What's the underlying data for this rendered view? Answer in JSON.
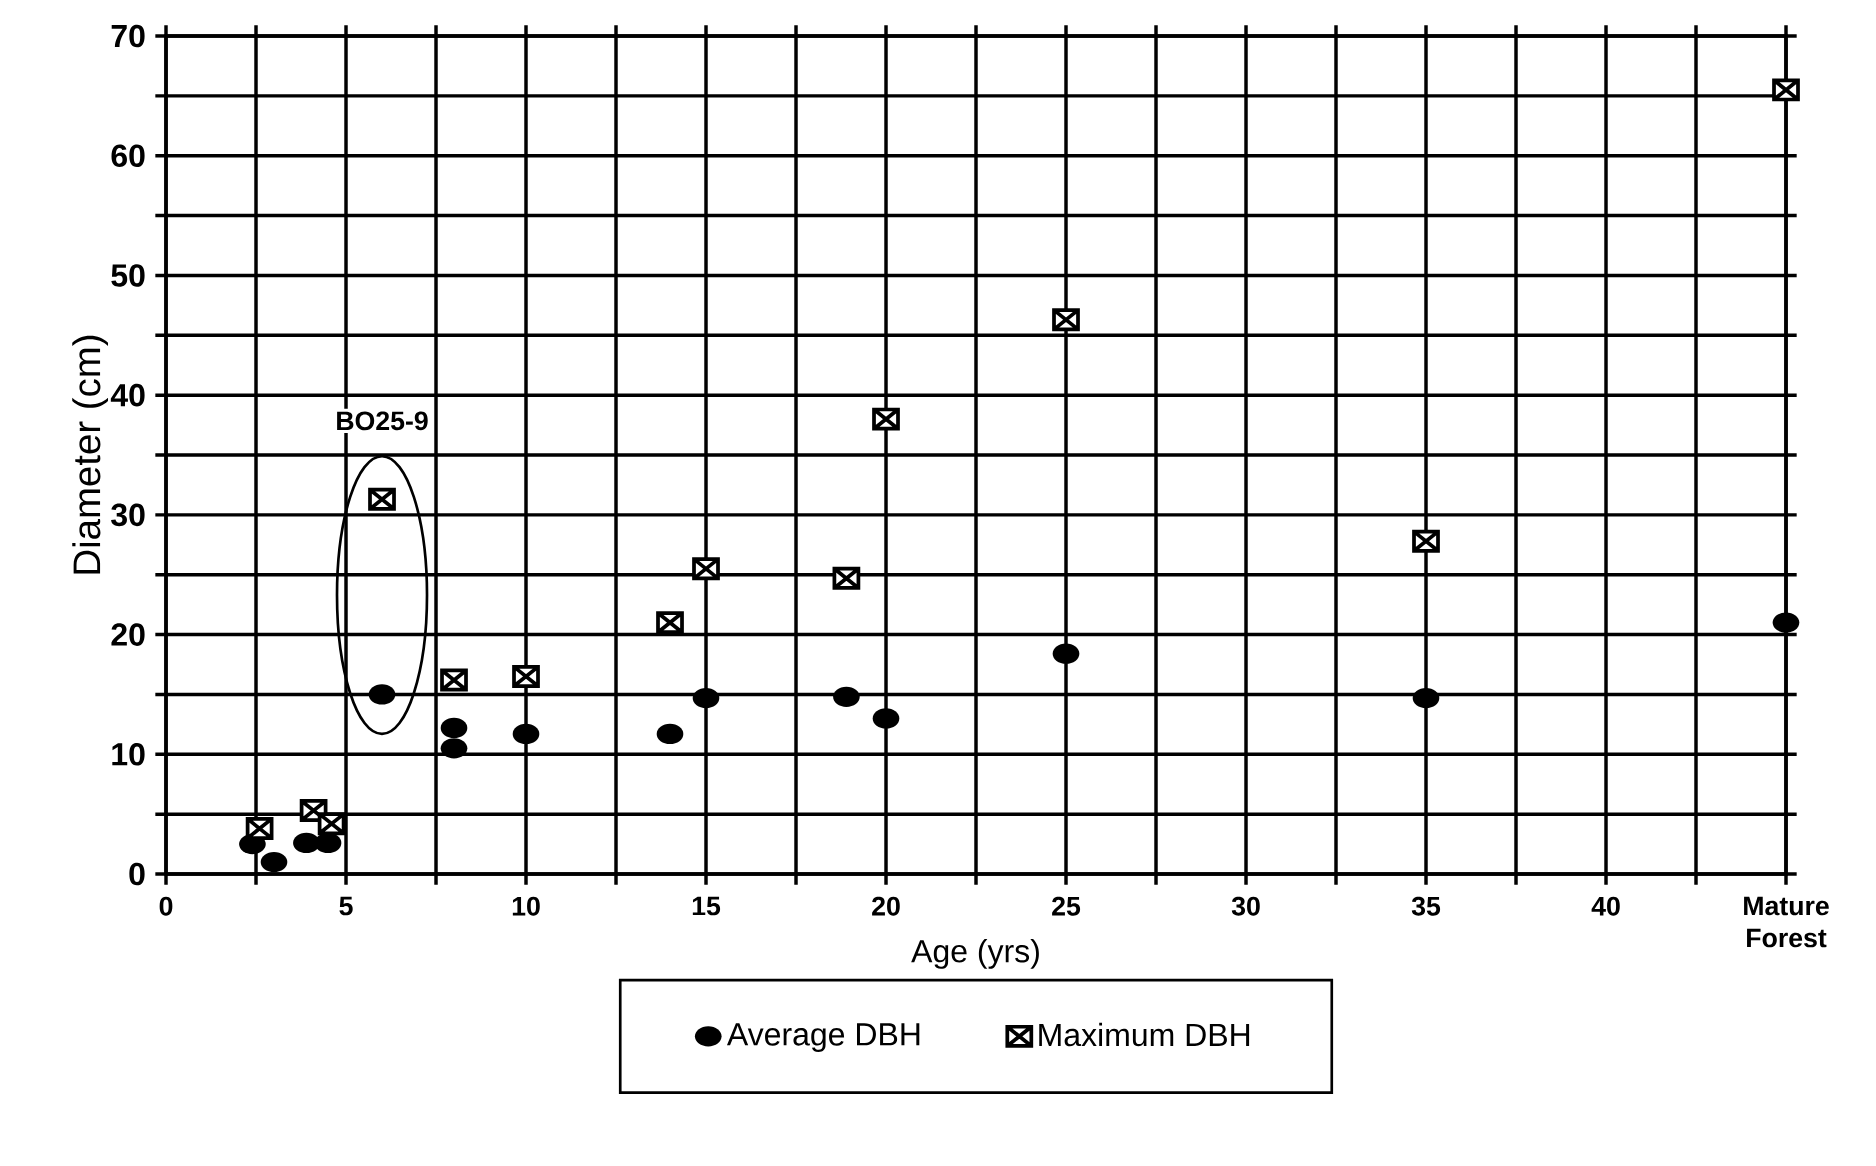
{
  "chart_data": {
    "type": "scatter",
    "xlabel": "Age (yrs)",
    "ylabel": "Diameter (cm)",
    "xlim": [
      0,
      45
    ],
    "ylim": [
      0,
      70
    ],
    "xticks": [
      0,
      5,
      10,
      15,
      20,
      25,
      30,
      35,
      40,
      {
        "value": 45,
        "label": "Mature Forest"
      }
    ],
    "yticks": [
      0,
      10,
      20,
      30,
      40,
      50,
      60,
      70
    ],
    "grid": true,
    "legend": "bottom",
    "series": [
      {
        "name": "Average DBH",
        "color": "#000000",
        "marker": "circle",
        "x": [
          2.4,
          3,
          3.9,
          4.5,
          6,
          8,
          8,
          10,
          14,
          15,
          18.9,
          20,
          25,
          35,
          45
        ],
        "values": [
          2.5,
          1,
          2.6,
          2.6,
          15,
          12.2,
          10.5,
          11.7,
          11.7,
          14.7,
          14.8,
          13,
          18.4,
          14.7,
          21
        ]
      },
      {
        "name": "Maximum DBH",
        "color": "#000000",
        "marker": "cross",
        "x": [
          2.6,
          4.1,
          4.6,
          6,
          8,
          10,
          14,
          15,
          18.9,
          20,
          25,
          35,
          45
        ],
        "values": [
          3.8,
          5.3,
          4.2,
          31.3,
          16.2,
          16.5,
          21,
          25.5,
          24.7,
          38,
          46.3,
          27.8,
          65.5
        ]
      }
    ],
    "annotations": [
      {
        "text": "BO25-9",
        "x": 6,
        "y": 31.3
      }
    ]
  }
}
